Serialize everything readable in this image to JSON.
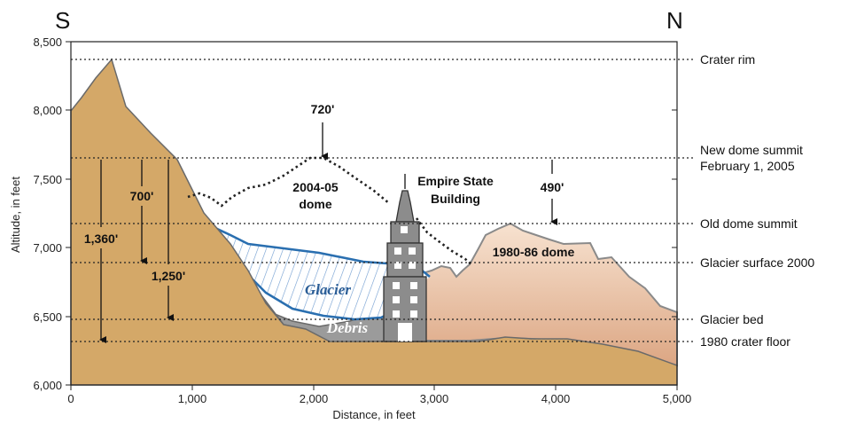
{
  "directions": {
    "south": "S",
    "north": "N"
  },
  "axes": {
    "x_label": "Distance, in feet",
    "y_label": "Altitude, in feet",
    "x_ticks": [
      "0",
      "1,000",
      "2,000",
      "3,000",
      "4,000",
      "5,000"
    ],
    "y_ticks": [
      "6,000",
      "6,500",
      "7,000",
      "7,500",
      "8,000",
      "8,500"
    ]
  },
  "reference_lines": {
    "crater_rim": "Crater rim",
    "new_dome_summit": "New dome summit",
    "new_dome_date": "February 1, 2005",
    "old_dome_summit": "Old dome summit",
    "glacier_surface": "Glacier surface 2000",
    "glacier_bed": "Glacier bed",
    "crater_floor": "1980 crater floor"
  },
  "annotations": {
    "dome_2004_05_line1": "2004-05",
    "dome_2004_05_line2": "dome",
    "empire_line1": "Empire State",
    "empire_line2": "Building",
    "dome_1980_86": "1980-86 dome",
    "glacier": "Glacier",
    "debris": "Debris"
  },
  "measurements": {
    "m720": "720'",
    "m490": "490'",
    "m700": "700'",
    "m1360": "1,360'",
    "m1250": "1,250'"
  },
  "colors": {
    "crater_wall": "#d4a868",
    "dome_1980": "#efc9ab",
    "debris": "#9a9a9a",
    "glacier_line": "#2a6fb0",
    "building": "#8c8c8c"
  }
}
